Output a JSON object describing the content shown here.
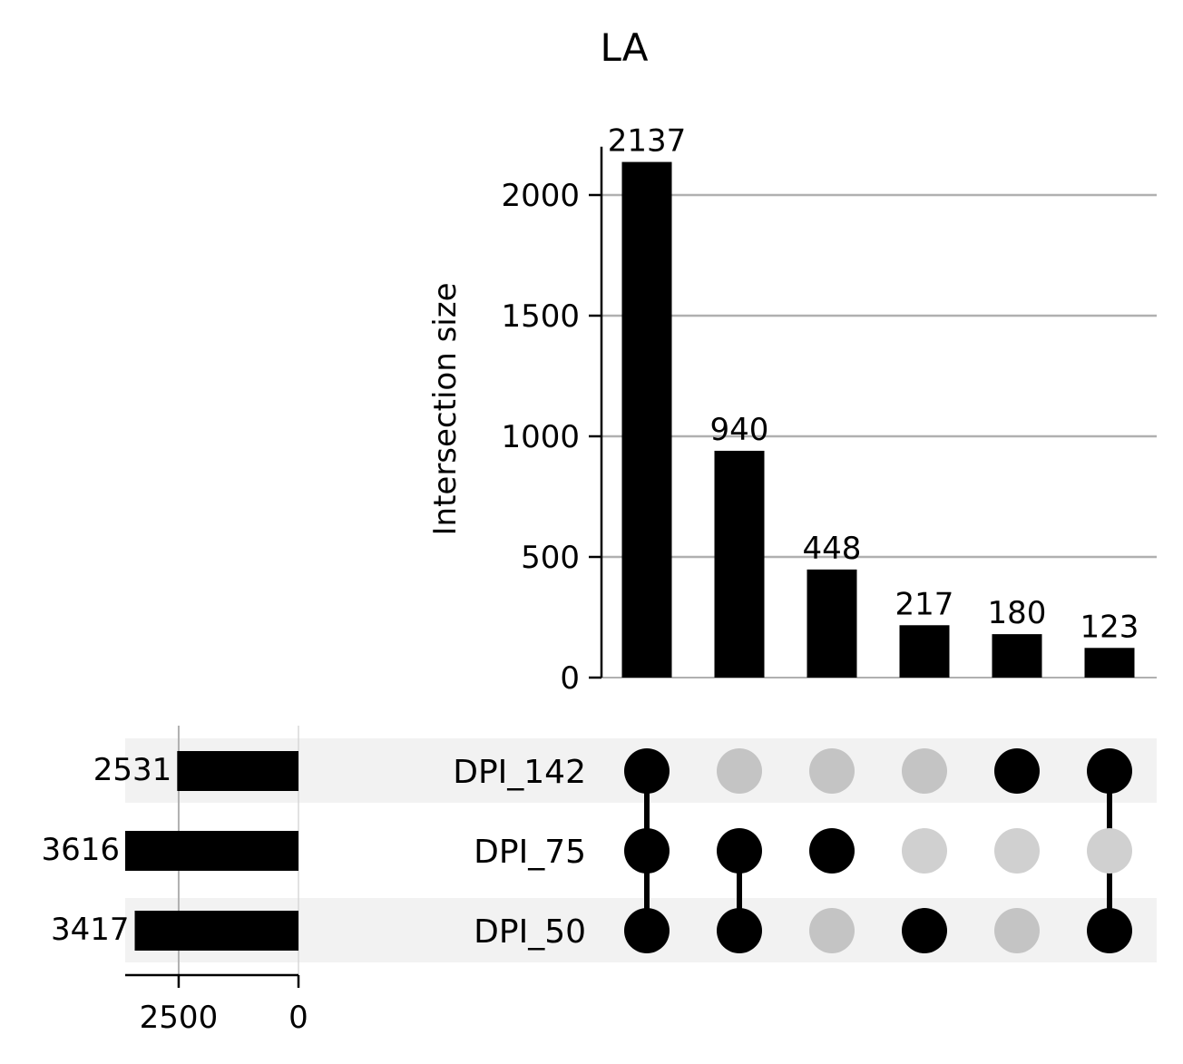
{
  "chart_data": {
    "type": "bar",
    "subtype": "upset",
    "title": "LA",
    "ylabel": "Intersection size",
    "ylim": [
      0,
      2200
    ],
    "yticks": [
      0,
      500,
      1000,
      1500,
      2000
    ],
    "grid": true,
    "sets": [
      "DPI_142",
      "DPI_75",
      "DPI_50"
    ],
    "set_sizes": [
      2531,
      3616,
      3417
    ],
    "set_size_ticks": [
      2500,
      0
    ],
    "set_size_xlim": [
      3616,
      0
    ],
    "intersections": [
      {
        "members": [
          "DPI_142",
          "DPI_75",
          "DPI_50"
        ],
        "value": 2137,
        "label": "2137"
      },
      {
        "members": [
          "DPI_75",
          "DPI_50"
        ],
        "value": 940,
        "label": "940"
      },
      {
        "members": [
          "DPI_75"
        ],
        "value": 448,
        "label": "448"
      },
      {
        "members": [
          "DPI_50"
        ],
        "value": 217,
        "label": "217"
      },
      {
        "members": [
          "DPI_142"
        ],
        "value": 180,
        "label": "180"
      },
      {
        "members": [
          "DPI_142",
          "DPI_50"
        ],
        "value": 123,
        "label": "123"
      }
    ],
    "colors": {
      "bar": "#000000",
      "dot_active": "#000000",
      "dot_inactive_shaded_row": "#c4c4c4",
      "dot_inactive_plain_row": "#d0d0d0",
      "row_shade": "#f2f2f2",
      "grid": "#b0b0b0"
    }
  }
}
